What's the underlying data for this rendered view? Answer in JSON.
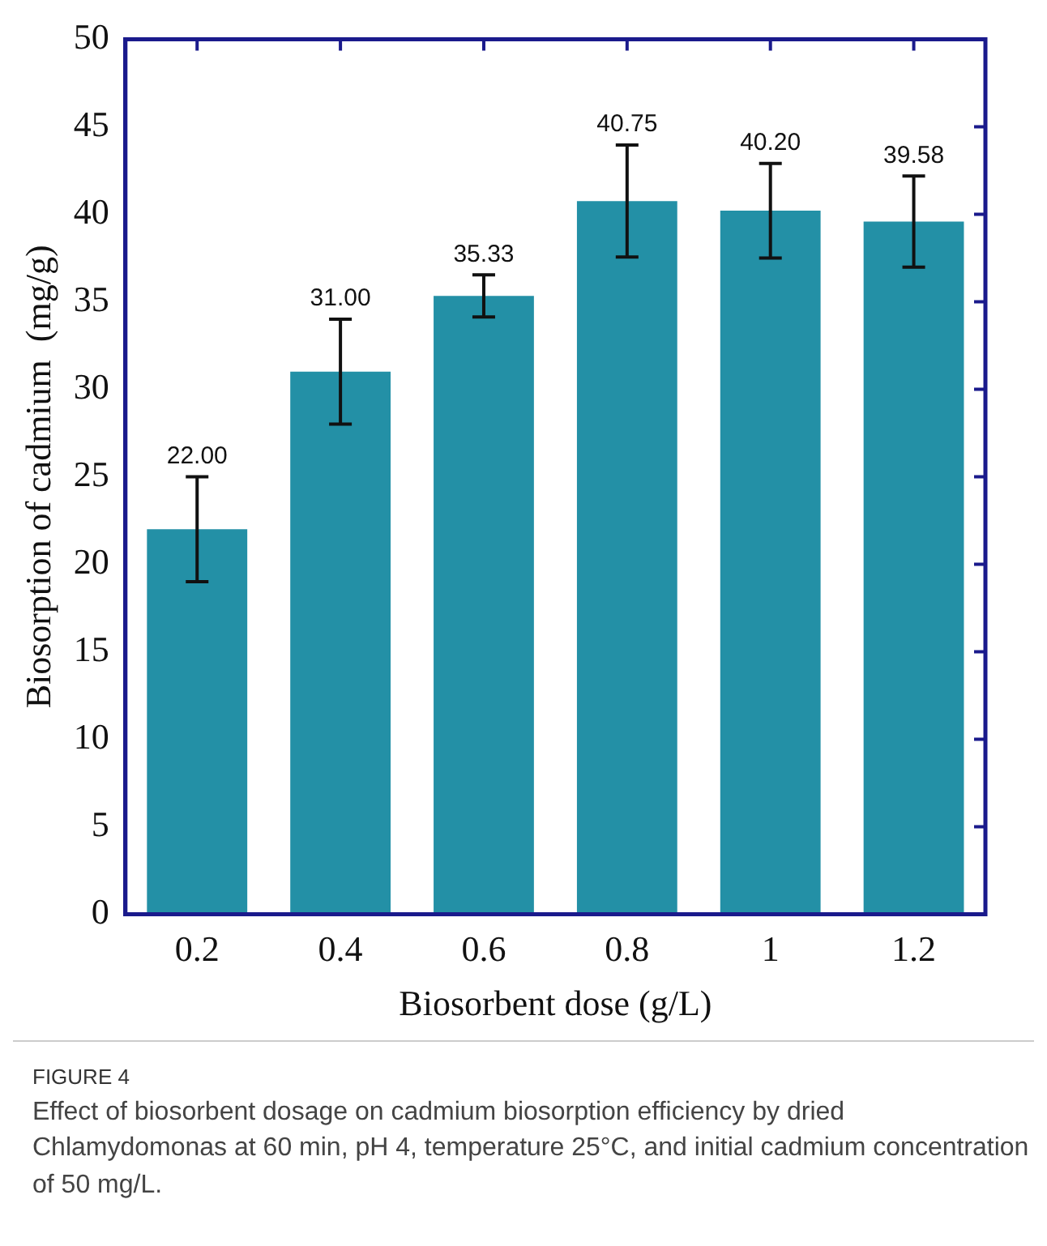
{
  "chart_data": {
    "type": "bar",
    "xlabel": "Biosorbent dose (g/L)",
    "ylabel": "Biosorption of cadmium  (mg/g)",
    "categories": [
      "0.2",
      "0.4",
      "0.6",
      "0.8",
      "1",
      "1.2"
    ],
    "values": [
      22.0,
      31.0,
      35.33,
      40.75,
      40.2,
      39.58
    ],
    "value_labels": [
      "22.00",
      "31.00",
      "35.33",
      "40.75",
      "40.20",
      "39.58"
    ],
    "errors": [
      3,
      3,
      1.2,
      3.2,
      2.7,
      2.6
    ],
    "color": "#2390a6",
    "ylim": [
      0,
      50
    ],
    "yticks": [
      0,
      5,
      10,
      15,
      20,
      25,
      30,
      35,
      40,
      45,
      50
    ],
    "grid": false,
    "legend": false,
    "annotations": [
      "FIGURE 4",
      "Effect of biosorbent dosage on cadmium biosorption efficiency by dried Chlamydomonas at 60 min, pH 4, temperature 25°C, and initial cadmium concentration of 50 mg/L."
    ]
  }
}
